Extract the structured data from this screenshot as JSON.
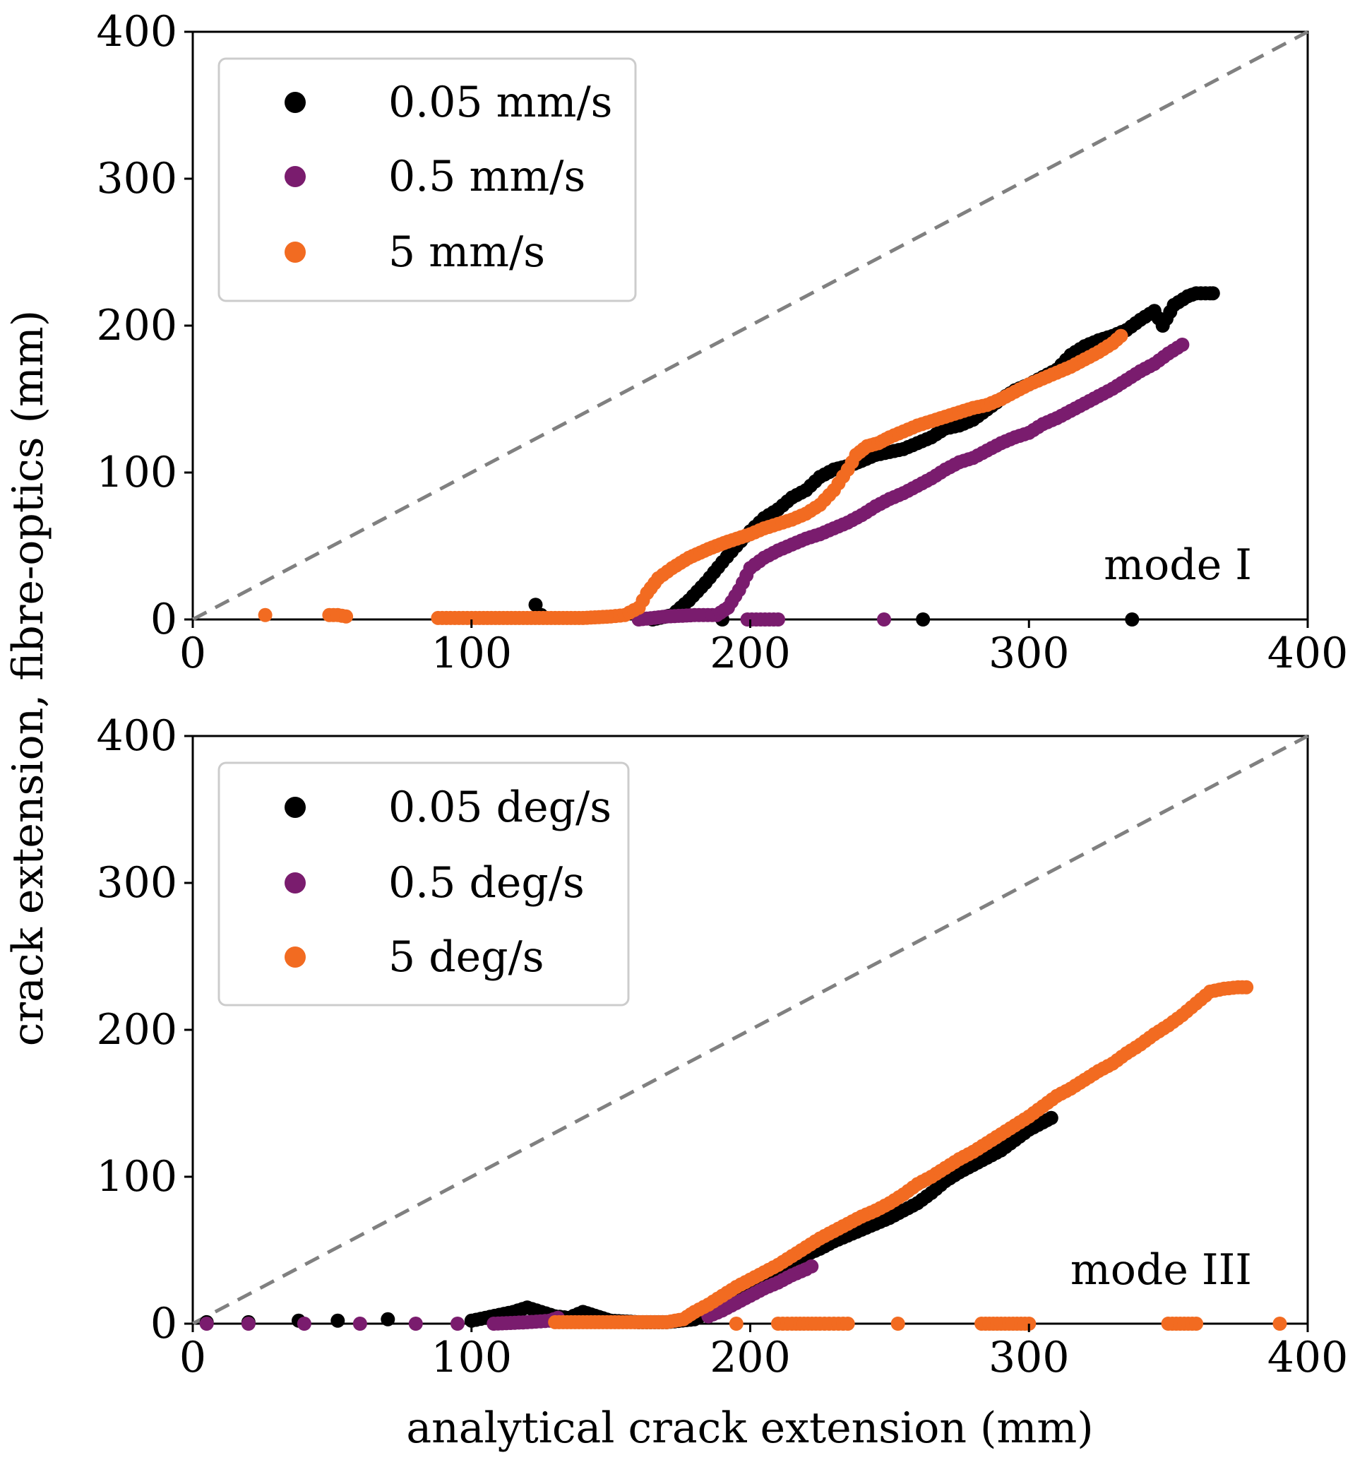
{
  "colors": {
    "black_series": "#000000",
    "purple_series": "#7a1c6e",
    "orange_series": "#f26b21",
    "reference_line": "#808080",
    "legend_border": "#cccccc"
  },
  "figure": {
    "ylabel": "crack extension, fibre-optics (mm)",
    "xlabel": "analytical crack extension (mm)"
  },
  "chart_data": [
    {
      "type": "scatter",
      "panel": "top",
      "annotation": "mode I",
      "xlim": [
        0,
        400
      ],
      "ylim": [
        0,
        400
      ],
      "xticks": [
        "0",
        "100",
        "200",
        "300",
        "400"
      ],
      "yticks": [
        "0",
        "100",
        "200",
        "300",
        "400"
      ],
      "reference_line": {
        "style": "dashed",
        "from": [
          0,
          0
        ],
        "to": [
          400,
          400
        ]
      },
      "legend": {
        "placement": "top-left"
      },
      "grid": false,
      "series": [
        {
          "name": "0.05 mm/s",
          "color": "#000000",
          "points": [
            [
              123,
              10
            ],
            [
              125,
              3
            ],
            [
              165,
              0
            ],
            [
              172,
              3
            ],
            [
              178,
              13
            ],
            [
              184,
              25
            ],
            [
              190,
              39
            ],
            [
              195,
              50
            ],
            [
              200,
              60
            ],
            [
              205,
              69
            ],
            [
              210,
              75
            ],
            [
              215,
              83
            ],
            [
              220,
              88
            ],
            [
              225,
              97
            ],
            [
              230,
              102
            ],
            [
              236,
              105
            ],
            [
              240,
              108
            ],
            [
              245,
              112
            ],
            [
              250,
              114
            ],
            [
              255,
              116
            ],
            [
              260,
              120
            ],
            [
              265,
              124
            ],
            [
              270,
              130
            ],
            [
              275,
              132
            ],
            [
              280,
              136
            ],
            [
              285,
              143
            ],
            [
              290,
              150
            ],
            [
              295,
              156
            ],
            [
              300,
              160
            ],
            [
              305,
              165
            ],
            [
              310,
              170
            ],
            [
              315,
              180
            ],
            [
              320,
              186
            ],
            [
              325,
              190
            ],
            [
              330,
              193
            ],
            [
              335,
              197
            ],
            [
              340,
              204
            ],
            [
              345,
              210
            ],
            [
              348,
              200
            ],
            [
              352,
              214
            ],
            [
              357,
              220
            ],
            [
              360,
              222
            ],
            [
              365,
              222
            ],
            [
              366,
              222
            ],
            [
              190,
              0
            ],
            [
              262,
              0
            ],
            [
              337,
              0
            ]
          ]
        },
        {
          "name": "0.5 mm/s",
          "color": "#7a1c6e",
          "points": [
            [
              160,
              0
            ],
            [
              170,
              2
            ],
            [
              180,
              3
            ],
            [
              188,
              3
            ],
            [
              192,
              8
            ],
            [
              196,
              20
            ],
            [
              200,
              35
            ],
            [
              205,
              42
            ],
            [
              210,
              47
            ],
            [
              215,
              51
            ],
            [
              220,
              55
            ],
            [
              225,
              58
            ],
            [
              230,
              62
            ],
            [
              235,
              66
            ],
            [
              240,
              71
            ],
            [
              245,
              77
            ],
            [
              250,
              82
            ],
            [
              255,
              86
            ],
            [
              260,
              91
            ],
            [
              265,
              96
            ],
            [
              270,
              102
            ],
            [
              275,
              107
            ],
            [
              280,
              110
            ],
            [
              285,
              115
            ],
            [
              290,
              120
            ],
            [
              295,
              124
            ],
            [
              300,
              127
            ],
            [
              305,
              133
            ],
            [
              310,
              137
            ],
            [
              315,
              142
            ],
            [
              320,
              147
            ],
            [
              325,
              152
            ],
            [
              330,
              157
            ],
            [
              335,
              163
            ],
            [
              340,
              169
            ],
            [
              345,
              174
            ],
            [
              350,
              181
            ],
            [
              355,
              187
            ],
            [
              199,
              0
            ],
            [
              210,
              0
            ],
            [
              248,
              0
            ]
          ]
        },
        {
          "name": "5 mm/s",
          "color": "#f26b21",
          "points": [
            [
              26,
              3
            ],
            [
              49,
              3
            ],
            [
              52,
              3
            ],
            [
              55,
              2
            ],
            [
              88,
              1
            ],
            [
              100,
              1
            ],
            [
              110,
              1
            ],
            [
              120,
              1
            ],
            [
              130,
              1
            ],
            [
              140,
              1
            ],
            [
              150,
              2
            ],
            [
              155,
              3
            ],
            [
              160,
              8
            ],
            [
              163,
              18
            ],
            [
              167,
              28
            ],
            [
              172,
              35
            ],
            [
              178,
              42
            ],
            [
              185,
              48
            ],
            [
              192,
              53
            ],
            [
              200,
              58
            ],
            [
              205,
              62
            ],
            [
              210,
              65
            ],
            [
              215,
              68
            ],
            [
              220,
              72
            ],
            [
              225,
              78
            ],
            [
              230,
              88
            ],
            [
              235,
              102
            ],
            [
              238,
              112
            ],
            [
              242,
              118
            ],
            [
              246,
              120
            ],
            [
              250,
              124
            ],
            [
              255,
              128
            ],
            [
              260,
              132
            ],
            [
              265,
              135
            ],
            [
              270,
              138
            ],
            [
              275,
              141
            ],
            [
              280,
              144
            ],
            [
              285,
              146
            ],
            [
              290,
              150
            ],
            [
              295,
              155
            ],
            [
              300,
              160
            ],
            [
              305,
              164
            ],
            [
              310,
              168
            ],
            [
              315,
              172
            ],
            [
              320,
              177
            ],
            [
              325,
              182
            ],
            [
              330,
              188
            ],
            [
              333,
              193
            ]
          ]
        }
      ]
    },
    {
      "type": "scatter",
      "panel": "bottom",
      "annotation": "mode III",
      "xlim": [
        0,
        400
      ],
      "ylim": [
        0,
        400
      ],
      "xticks": [
        "0",
        "100",
        "200",
        "300",
        "400"
      ],
      "yticks": [
        "0",
        "100",
        "200",
        "300",
        "400"
      ],
      "reference_line": {
        "style": "dashed",
        "from": [
          0,
          0
        ],
        "to": [
          400,
          400
        ]
      },
      "legend": {
        "placement": "top-left"
      },
      "grid": false,
      "series": [
        {
          "name": "0.05 deg/s",
          "color": "#000000",
          "points": [
            [
              5,
              1
            ],
            [
              20,
              1
            ],
            [
              38,
              2
            ],
            [
              52,
              2
            ],
            [
              70,
              3
            ],
            [
              100,
              2
            ],
            [
              105,
              4
            ],
            [
              110,
              6
            ],
            [
              115,
              8
            ],
            [
              120,
              11
            ],
            [
              125,
              8
            ],
            [
              130,
              5
            ],
            [
              135,
              4
            ],
            [
              140,
              8
            ],
            [
              150,
              2
            ],
            [
              160,
              1
            ],
            [
              170,
              1
            ],
            [
              180,
              3
            ],
            [
              185,
              8
            ],
            [
              190,
              14
            ],
            [
              195,
              20
            ],
            [
              200,
              26
            ],
            [
              205,
              33
            ],
            [
              210,
              38
            ],
            [
              215,
              43
            ],
            [
              220,
              47
            ],
            [
              225,
              51
            ],
            [
              230,
              56
            ],
            [
              235,
              60
            ],
            [
              240,
              64
            ],
            [
              245,
              68
            ],
            [
              250,
              72
            ],
            [
              255,
              77
            ],
            [
              260,
              82
            ],
            [
              265,
              89
            ],
            [
              270,
              97
            ],
            [
              275,
              103
            ],
            [
              280,
              108
            ],
            [
              285,
              113
            ],
            [
              290,
              118
            ],
            [
              295,
              125
            ],
            [
              300,
              132
            ],
            [
              305,
              137
            ],
            [
              308,
              140
            ]
          ]
        },
        {
          "name": "0.5 deg/s",
          "color": "#7a1c6e",
          "points": [
            [
              5,
              0
            ],
            [
              20,
              0
            ],
            [
              40,
              0
            ],
            [
              60,
              0
            ],
            [
              80,
              0
            ],
            [
              95,
              0
            ],
            [
              108,
              0
            ],
            [
              120,
              1
            ],
            [
              128,
              2
            ],
            [
              131,
              4
            ],
            [
              185,
              5
            ],
            [
              190,
              9
            ],
            [
              195,
              14
            ],
            [
              200,
              19
            ],
            [
              205,
              24
            ],
            [
              210,
              28
            ],
            [
              215,
              33
            ],
            [
              220,
              37
            ],
            [
              222,
              39
            ]
          ]
        },
        {
          "name": "5 deg/s",
          "color": "#f26b21",
          "points": [
            [
              130,
              1
            ],
            [
              140,
              1
            ],
            [
              150,
              1
            ],
            [
              160,
              1
            ],
            [
              170,
              1
            ],
            [
              176,
              3
            ],
            [
              180,
              8
            ],
            [
              185,
              13
            ],
            [
              190,
              19
            ],
            [
              195,
              25
            ],
            [
              200,
              30
            ],
            [
              205,
              35
            ],
            [
              210,
              40
            ],
            [
              215,
              46
            ],
            [
              220,
              52
            ],
            [
              225,
              58
            ],
            [
              230,
              63
            ],
            [
              235,
              68
            ],
            [
              240,
              73
            ],
            [
              245,
              77
            ],
            [
              250,
              82
            ],
            [
              255,
              88
            ],
            [
              260,
              95
            ],
            [
              265,
              100
            ],
            [
              270,
              106
            ],
            [
              275,
              112
            ],
            [
              280,
              117
            ],
            [
              285,
              123
            ],
            [
              290,
              129
            ],
            [
              295,
              135
            ],
            [
              300,
              141
            ],
            [
              305,
              148
            ],
            [
              310,
              155
            ],
            [
              315,
              160
            ],
            [
              320,
              166
            ],
            [
              325,
              172
            ],
            [
              330,
              177
            ],
            [
              335,
              184
            ],
            [
              340,
              190
            ],
            [
              345,
              197
            ],
            [
              350,
              203
            ],
            [
              355,
              210
            ],
            [
              360,
              218
            ],
            [
              365,
              226
            ],
            [
              370,
              228
            ],
            [
              375,
              229
            ],
            [
              378,
              229
            ],
            [
              195,
              0
            ],
            [
              210,
              0
            ],
            [
              215,
              0
            ],
            [
              225,
              0
            ],
            [
              230,
              0
            ],
            [
              235,
              0
            ],
            [
              253,
              0
            ],
            [
              283,
              0
            ],
            [
              290,
              0
            ],
            [
              300,
              0
            ],
            [
              350,
              0
            ],
            [
              360,
              0
            ],
            [
              390,
              0
            ]
          ]
        }
      ]
    }
  ]
}
